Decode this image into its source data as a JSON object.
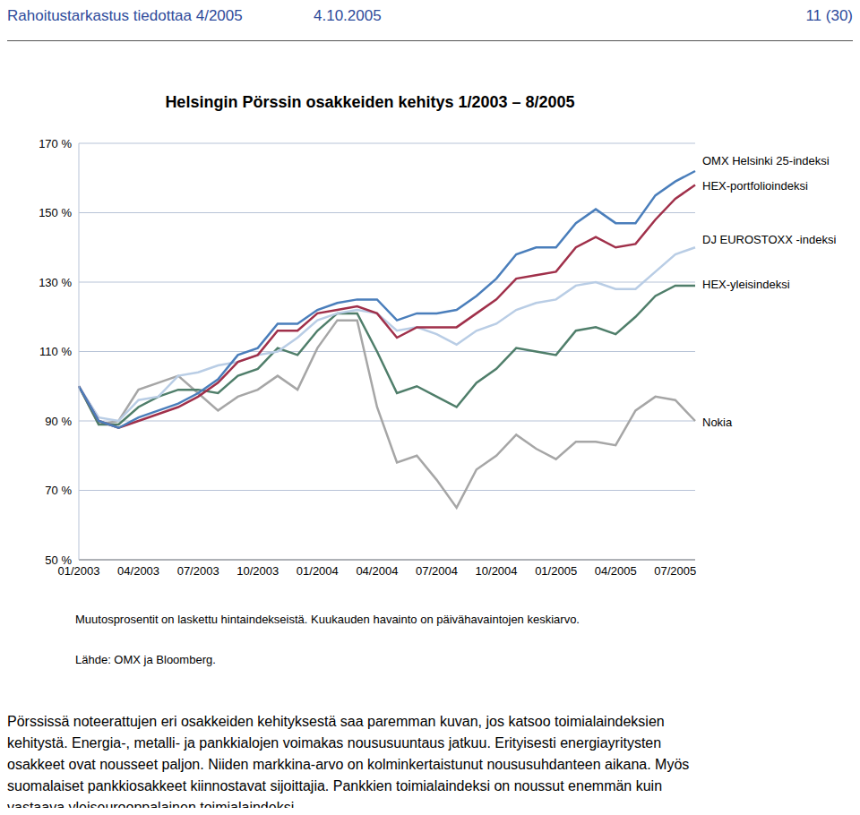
{
  "header": {
    "left": "Rahoitustarkastus tiedottaa 4/2005",
    "date": "4.10.2005",
    "page": "11 (30)"
  },
  "chart_data": {
    "type": "line",
    "title": "Helsingin Pörssin osakkeiden kehitys 1/2003 – 8/2005",
    "categories": [
      "01/2003",
      null,
      null,
      "04/2003",
      null,
      null,
      "07/2003",
      null,
      null,
      "10/2003",
      null,
      null,
      "01/2004",
      null,
      null,
      "04/2004",
      null,
      null,
      "07/2004",
      null,
      null,
      "10/2004",
      null,
      null,
      "01/2005",
      null,
      null,
      "04/2005",
      null,
      null,
      "07/2005",
      null
    ],
    "series": [
      {
        "name": "OMX Helsinki 25-indeksi",
        "color": "#4a7ebb",
        "values": [
          100,
          90,
          88,
          91,
          93,
          95,
          98,
          102,
          109,
          111,
          118,
          118,
          122,
          124,
          125,
          125,
          119,
          121,
          121,
          122,
          126,
          131,
          138,
          140,
          140,
          147,
          151,
          147,
          147,
          155,
          159,
          162
        ]
      },
      {
        "name": "HEX-portfolioindeksi",
        "color": "#a0304a",
        "values": [
          100,
          90,
          88,
          90,
          92,
          94,
          97,
          101,
          107,
          109,
          116,
          116,
          121,
          122,
          123,
          121,
          114,
          117,
          117,
          117,
          121,
          125,
          131,
          132,
          133,
          140,
          143,
          140,
          141,
          148,
          154,
          158
        ]
      },
      {
        "name": "DJ EUROSTOXX -indeksi",
        "color": "#b9cde5",
        "values": [
          100,
          91,
          90,
          96,
          97,
          103,
          104,
          106,
          107,
          109,
          110,
          114,
          119,
          121,
          122,
          121,
          116,
          117,
          115,
          112,
          116,
          118,
          122,
          124,
          125,
          129,
          130,
          128,
          128,
          133,
          138,
          140
        ]
      },
      {
        "name": "HEX-yleisindeksi",
        "color": "#4f7e6a",
        "values": [
          100,
          89,
          89,
          94,
          97,
          99,
          99,
          98,
          103,
          105,
          111,
          109,
          116,
          121,
          121,
          110,
          98,
          100,
          97,
          94,
          101,
          105,
          111,
          110,
          109,
          116,
          117,
          115,
          120,
          126,
          129,
          129
        ]
      },
      {
        "name": "Nokia",
        "color": "#a6a6a6",
        "values": [
          100,
          89,
          90,
          99,
          101,
          103,
          98,
          93,
          97,
          99,
          103,
          99,
          111,
          119,
          119,
          94,
          78,
          80,
          73,
          65,
          76,
          80,
          86,
          82,
          79,
          84,
          84,
          83,
          93,
          97,
          96,
          90
        ]
      }
    ],
    "ylim": [
      50,
      170
    ],
    "yticks": [
      {
        "value": 50,
        "label": "50 %"
      },
      {
        "value": 70,
        "label": "70 %"
      },
      {
        "value": 90,
        "label": "90 %"
      },
      {
        "value": 110,
        "label": "110 %"
      },
      {
        "value": 130,
        "label": "130 %"
      },
      {
        "value": 150,
        "label": "150 %"
      },
      {
        "value": 170,
        "label": "170 %"
      }
    ],
    "grid": true,
    "notes": [
      "Muutosprosentit on laskettu hintaindekseistä. Kuukauden havainto on päivähavaintojen keskiarvo.",
      "Lähde: OMX ja Bloomberg."
    ]
  },
  "body": {
    "lines": [
      "Pörssissä noteerattujen eri osakkeiden kehityksestä saa paremman kuvan, jos katsoo toimialaindeksien",
      "kehitystä. Energia-, metalli- ja pankkialojen voimakas noususuuntaus jatkuu. Erityisesti energiayritysten",
      "osakkeet ovat nousseet paljon. Niiden markkina-arvo on kolminkertaistunut noususuhdanteen aikana. Myös",
      "suomalaiset pankkiosakkeet kiinnostavat sijoittajia. Pankkien toimialaindeksi on noussut enemmän kuin",
      "vastaava yleiseurooppalainen toimialaindeksi."
    ]
  }
}
